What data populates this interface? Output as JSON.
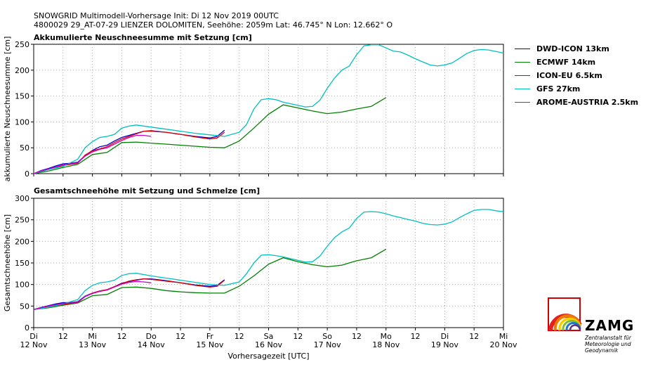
{
  "header": {
    "line1": "SNOWGRID Multimodell-Vorhersage Init: Di 12 Nov 2019 00UTC",
    "line2": "4800029 29_AT-07-29 LIENZER DOLOMITEN, Seehöhe: 2059m Lat: 46.745° N Lon: 12.662° O"
  },
  "logo": {
    "name": "ZAMG",
    "subtitle_lines": [
      "Zentralanstalt für",
      "Meteorologie und",
      "Geodynamik"
    ]
  },
  "chart_data": [
    {
      "type": "line",
      "title": "Akkumulierte Neuschneesumme mit Setzung [cm]",
      "ylabel": "akkumulierte Neuschneesumme [cm]",
      "xlabel": "",
      "xlim": [
        0,
        192
      ],
      "ylim": [
        0,
        250
      ],
      "yticks": [
        0,
        50,
        100,
        150,
        200,
        250
      ],
      "grid": true,
      "legend_position": "right",
      "series": [
        {
          "name": "DWD-ICON 13km",
          "color": "#0000cc",
          "x": [
            0,
            3,
            6,
            9,
            12,
            15,
            18,
            21,
            24,
            27,
            30,
            33,
            36,
            39,
            42,
            45,
            48,
            54,
            60,
            66,
            72,
            75,
            78
          ],
          "y": [
            0,
            6,
            10,
            15,
            19,
            20,
            22,
            35,
            45,
            52,
            55,
            63,
            70,
            74,
            78,
            82,
            83,
            80,
            76,
            72,
            69,
            72,
            84
          ]
        },
        {
          "name": "ECMWF 14km",
          "color": "#008000",
          "x": [
            0,
            6,
            12,
            18,
            24,
            30,
            36,
            42,
            48,
            54,
            60,
            66,
            72,
            78,
            84,
            90,
            96,
            102,
            108,
            114,
            120,
            126,
            132,
            138,
            144
          ],
          "y": [
            0,
            5,
            12,
            18,
            37,
            41,
            60,
            61,
            59,
            57,
            55,
            53,
            51,
            50,
            63,
            88,
            115,
            133,
            127,
            121,
            116,
            119,
            125,
            130,
            147
          ]
        },
        {
          "name": "ICON-EU 6.5km",
          "color": "#dd0000",
          "x": [
            0,
            3,
            6,
            9,
            12,
            15,
            18,
            21,
            24,
            27,
            30,
            33,
            36,
            39,
            42,
            45,
            48,
            54,
            60,
            66,
            72,
            75,
            78
          ],
          "y": [
            0,
            5,
            8,
            12,
            16,
            18,
            20,
            36,
            44,
            48,
            52,
            60,
            67,
            72,
            77,
            82,
            82,
            80,
            76,
            71,
            67,
            69,
            80
          ]
        },
        {
          "name": "GFS 27km",
          "color": "#00c0c0",
          "x": [
            0,
            6,
            12,
            18,
            21,
            24,
            27,
            30,
            33,
            36,
            39,
            42,
            48,
            54,
            60,
            66,
            72,
            78,
            84,
            87,
            90,
            93,
            96,
            99,
            102,
            105,
            108,
            111,
            114,
            117,
            120,
            123,
            126,
            129,
            132,
            135,
            138,
            141,
            144,
            147,
            150,
            153,
            156,
            159,
            162,
            165,
            168,
            171,
            174,
            177,
            180,
            183,
            186,
            189,
            192
          ],
          "y": [
            0,
            8,
            14,
            28,
            50,
            62,
            70,
            72,
            76,
            88,
            92,
            94,
            90,
            86,
            82,
            78,
            75,
            72,
            80,
            95,
            125,
            143,
            145,
            143,
            138,
            135,
            132,
            129,
            130,
            142,
            165,
            185,
            200,
            208,
            230,
            247,
            249,
            249,
            243,
            237,
            235,
            229,
            222,
            216,
            210,
            208,
            210,
            214,
            223,
            232,
            238,
            240,
            239,
            236,
            233
          ]
        },
        {
          "name": "AROME-AUSTRIA 2.5km",
          "color": "#cc00cc",
          "x": [
            0,
            3,
            6,
            9,
            12,
            15,
            18,
            21,
            24,
            27,
            30,
            33,
            36,
            39,
            42,
            45,
            48
          ],
          "y": [
            0,
            5,
            9,
            13,
            17,
            19,
            21,
            34,
            42,
            47,
            50,
            57,
            64,
            70,
            74,
            74,
            72
          ]
        }
      ]
    },
    {
      "type": "line",
      "title": "Gesamtschneehöhe mit Setzung und Schmelze [cm]",
      "ylabel": "Gesamtschneehöhe [cm]",
      "xlabel": "Vorhersagezeit [UTC]",
      "xlim": [
        0,
        192
      ],
      "ylim": [
        0,
        300
      ],
      "yticks": [
        0,
        50,
        100,
        150,
        200,
        250,
        300
      ],
      "xticks": [
        {
          "x": 0,
          "label": "Di",
          "sub": "12 Nov"
        },
        {
          "x": 12,
          "label": "12",
          "sub": ""
        },
        {
          "x": 24,
          "label": "Mi",
          "sub": "13 Nov"
        },
        {
          "x": 36,
          "label": "12",
          "sub": ""
        },
        {
          "x": 48,
          "label": "Do",
          "sub": "14 Nov"
        },
        {
          "x": 60,
          "label": "12",
          "sub": ""
        },
        {
          "x": 72,
          "label": "Fr",
          "sub": "15 Nov"
        },
        {
          "x": 84,
          "label": "12",
          "sub": ""
        },
        {
          "x": 96,
          "label": "Sa",
          "sub": "16 Nov"
        },
        {
          "x": 108,
          "label": "12",
          "sub": ""
        },
        {
          "x": 120,
          "label": "So",
          "sub": "17 Nov"
        },
        {
          "x": 132,
          "label": "12",
          "sub": ""
        },
        {
          "x": 144,
          "label": "Mo",
          "sub": "18 Nov"
        },
        {
          "x": 156,
          "label": "12",
          "sub": ""
        },
        {
          "x": 168,
          "label": "Di",
          "sub": "19 Nov"
        },
        {
          "x": 180,
          "label": "12",
          "sub": ""
        },
        {
          "x": 192,
          "label": "Mi",
          "sub": "20 Nov"
        }
      ],
      "grid": true,
      "series": [
        {
          "name": "DWD-ICON 13km",
          "color": "#0000cc",
          "x": [
            0,
            3,
            6,
            9,
            12,
            15,
            18,
            21,
            24,
            27,
            30,
            33,
            36,
            39,
            42,
            45,
            48,
            54,
            60,
            66,
            72,
            75,
            78
          ],
          "y": [
            42,
            47,
            51,
            55,
            58,
            58,
            60,
            73,
            80,
            85,
            88,
            95,
            103,
            107,
            110,
            113,
            113,
            109,
            104,
            99,
            96,
            98,
            111
          ]
        },
        {
          "name": "ECMWF 14km",
          "color": "#008000",
          "x": [
            0,
            6,
            12,
            18,
            24,
            30,
            36,
            42,
            48,
            54,
            60,
            66,
            72,
            78,
            84,
            90,
            96,
            102,
            108,
            114,
            120,
            126,
            132,
            138,
            144
          ],
          "y": [
            42,
            46,
            52,
            57,
            74,
            77,
            93,
            94,
            91,
            86,
            83,
            81,
            80,
            80,
            96,
            120,
            147,
            162,
            153,
            146,
            141,
            145,
            155,
            162,
            182
          ]
        },
        {
          "name": "ICON-EU 6.5km",
          "color": "#dd0000",
          "x": [
            0,
            3,
            6,
            9,
            12,
            15,
            18,
            21,
            24,
            27,
            30,
            33,
            36,
            39,
            42,
            45,
            48,
            54,
            60,
            66,
            72,
            75,
            78
          ],
          "y": [
            42,
            46,
            48,
            51,
            54,
            56,
            58,
            72,
            80,
            85,
            88,
            95,
            102,
            108,
            111,
            113,
            112,
            108,
            104,
            98,
            94,
            96,
            110
          ]
        },
        {
          "name": "GFS 27km",
          "color": "#00c0c0",
          "x": [
            0,
            6,
            12,
            18,
            21,
            24,
            27,
            30,
            33,
            36,
            39,
            42,
            48,
            54,
            60,
            66,
            72,
            78,
            84,
            87,
            90,
            93,
            96,
            99,
            102,
            105,
            108,
            111,
            114,
            117,
            120,
            123,
            126,
            129,
            132,
            135,
            138,
            141,
            144,
            147,
            150,
            153,
            156,
            159,
            162,
            165,
            168,
            171,
            174,
            177,
            180,
            183,
            186,
            189,
            192
          ],
          "y": [
            42,
            47,
            55,
            65,
            86,
            98,
            104,
            106,
            110,
            121,
            125,
            126,
            120,
            115,
            110,
            105,
            100,
            98,
            106,
            125,
            150,
            168,
            169,
            167,
            164,
            160,
            156,
            152,
            153,
            166,
            189,
            209,
            222,
            231,
            253,
            268,
            269,
            268,
            264,
            259,
            255,
            251,
            247,
            242,
            239,
            238,
            240,
            245,
            255,
            264,
            272,
            274,
            274,
            271,
            269
          ]
        },
        {
          "name": "AROME-AUSTRIA 2.5km",
          "color": "#cc00cc",
          "x": [
            0,
            3,
            6,
            9,
            12,
            15,
            18,
            21,
            24,
            27,
            30,
            33,
            36,
            39,
            42,
            45,
            48
          ],
          "y": [
            42,
            46,
            50,
            53,
            56,
            57,
            59,
            72,
            79,
            84,
            87,
            94,
            101,
            105,
            107,
            106,
            104
          ]
        }
      ]
    }
  ]
}
